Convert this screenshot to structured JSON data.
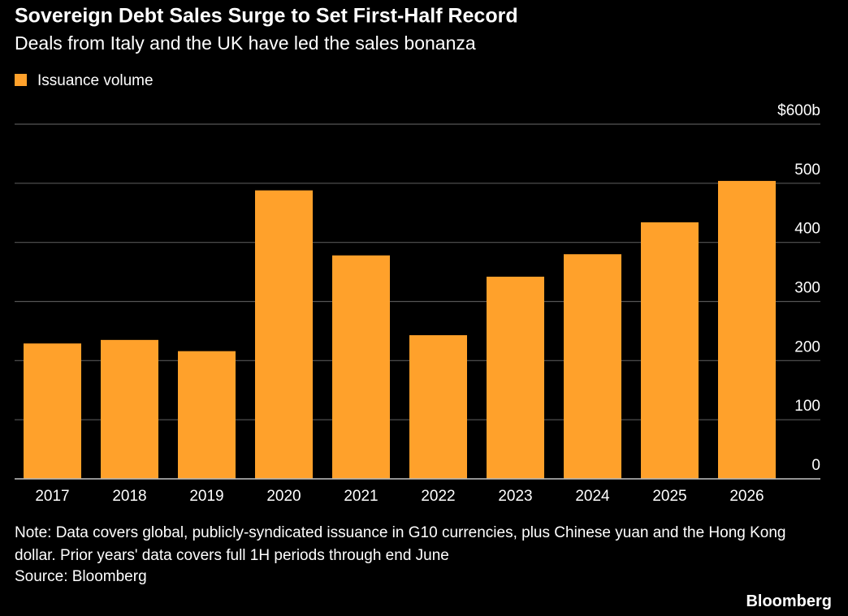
{
  "chart_data": {
    "type": "bar",
    "title": "Sovereign Debt Sales Surge to Set First-Half Record",
    "subtitle": "Deals from Italy and the UK have led the sales bonanza",
    "categories": [
      "2017",
      "2018",
      "2019",
      "2020",
      "2021",
      "2022",
      "2023",
      "2024",
      "2025",
      "2026"
    ],
    "series": [
      {
        "name": "Issuance volume",
        "color": "#ffa12b",
        "values": [
          229,
          235,
          216,
          488,
          378,
          243,
          342,
          380,
          434,
          504
        ]
      }
    ],
    "ylim": [
      0,
      600
    ],
    "yticks": [
      0,
      100,
      200,
      300,
      400,
      500,
      {
        "value": 600,
        "label": "$600b"
      }
    ],
    "grid": true,
    "legend": "top-left",
    "note": "Note: Data covers global, publicly-syndicated issuance in G10 currencies, plus Chinese yuan and the Hong Kong dollar. Prior years' data covers full 1H periods through end June",
    "source": "Source: Bloomberg",
    "credit": "Bloomberg"
  }
}
